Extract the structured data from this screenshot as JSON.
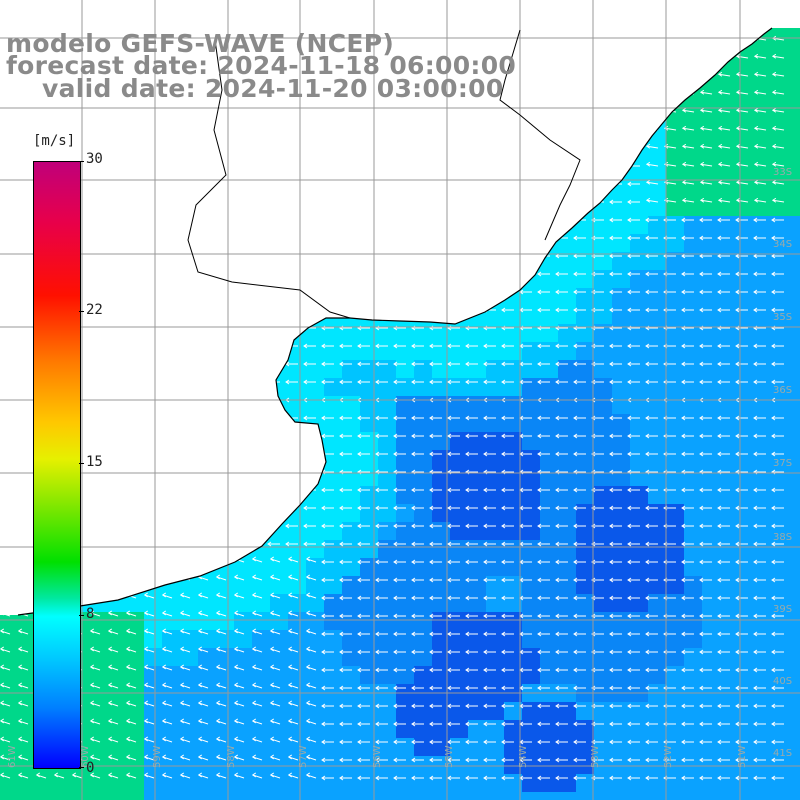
{
  "title": {
    "model": "modelo GEFS-WAVE (NCEP)",
    "forecast": "forecast date: 2024-11-18 06:00:00",
    "valid": "valid date: 2024-11-20 03:00:00"
  },
  "colorbar": {
    "units": "[m/s]",
    "ticks": [
      "30",
      "22",
      "15",
      "8",
      "0"
    ],
    "tick_values": [
      30,
      22,
      15,
      8,
      0
    ],
    "colors": [
      "#0000ff",
      "#0080ff",
      "#00c8ff",
      "#00ffff",
      "#00e8a0",
      "#00e000",
      "#8ae800",
      "#e6f000",
      "#ffc800",
      "#ff7a00",
      "#ff1000",
      "#e8004a",
      "#c0007a"
    ]
  },
  "map": {
    "region": "Rio de la Plata / Uruguay / Buenos Aires coast",
    "lat_labels": [
      "33S",
      "34S",
      "35S",
      "36S",
      "37S",
      "38S",
      "39S",
      "40S",
      "41S"
    ],
    "lon_labels": [
      "61W",
      "60W",
      "59W",
      "58W",
      "57W",
      "56W",
      "55W",
      "54W",
      "53W",
      "52W",
      "51W"
    ],
    "land_color": "#ffffff",
    "coast_color": "#000000",
    "grid_color": "#999999",
    "arrow_color": "#ffffff",
    "wind_direction": "from east / northeast",
    "sea_colors": {
      "open_ocean": "#0aa2ff",
      "strong_low_zone": "#0a58ea",
      "near_shore": "#00e6ff",
      "south_west": "#00d88a"
    }
  }
}
